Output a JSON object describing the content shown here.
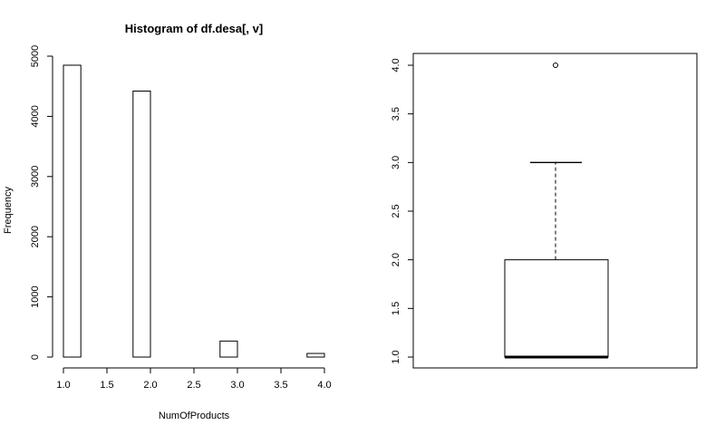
{
  "chart_data": [
    {
      "type": "bar",
      "subtype": "histogram",
      "title": "Histogram of df.desa[, v]",
      "xlabel": "NumOfProducts",
      "ylabel": "Frequency",
      "xlim": [
        1.0,
        4.0
      ],
      "ylim": [
        0,
        5000
      ],
      "bins": [
        {
          "x0": 1.0,
          "x1": 1.2,
          "value": 4850
        },
        {
          "x0": 1.8,
          "x1": 2.0,
          "value": 4420
        },
        {
          "x0": 2.8,
          "x1": 3.0,
          "value": 266
        },
        {
          "x0": 3.8,
          "x1": 4.0,
          "value": 60
        }
      ],
      "xticks": [
        "1.0",
        "1.5",
        "2.0",
        "2.5",
        "3.0",
        "3.5",
        "4.0"
      ],
      "yticks": [
        "0",
        "1000",
        "2000",
        "3000",
        "4000",
        "5000"
      ],
      "grid": false
    },
    {
      "type": "box",
      "ylim": [
        1.0,
        4.0
      ],
      "min": 1.0,
      "q1": 1.0,
      "median": 1.0,
      "q3": 2.0,
      "whisker_high": 3.0,
      "outliers": [
        4.0
      ],
      "yticks": [
        "1.0",
        "1.5",
        "2.0",
        "2.5",
        "3.0",
        "3.5",
        "4.0"
      ],
      "grid": false
    }
  ]
}
